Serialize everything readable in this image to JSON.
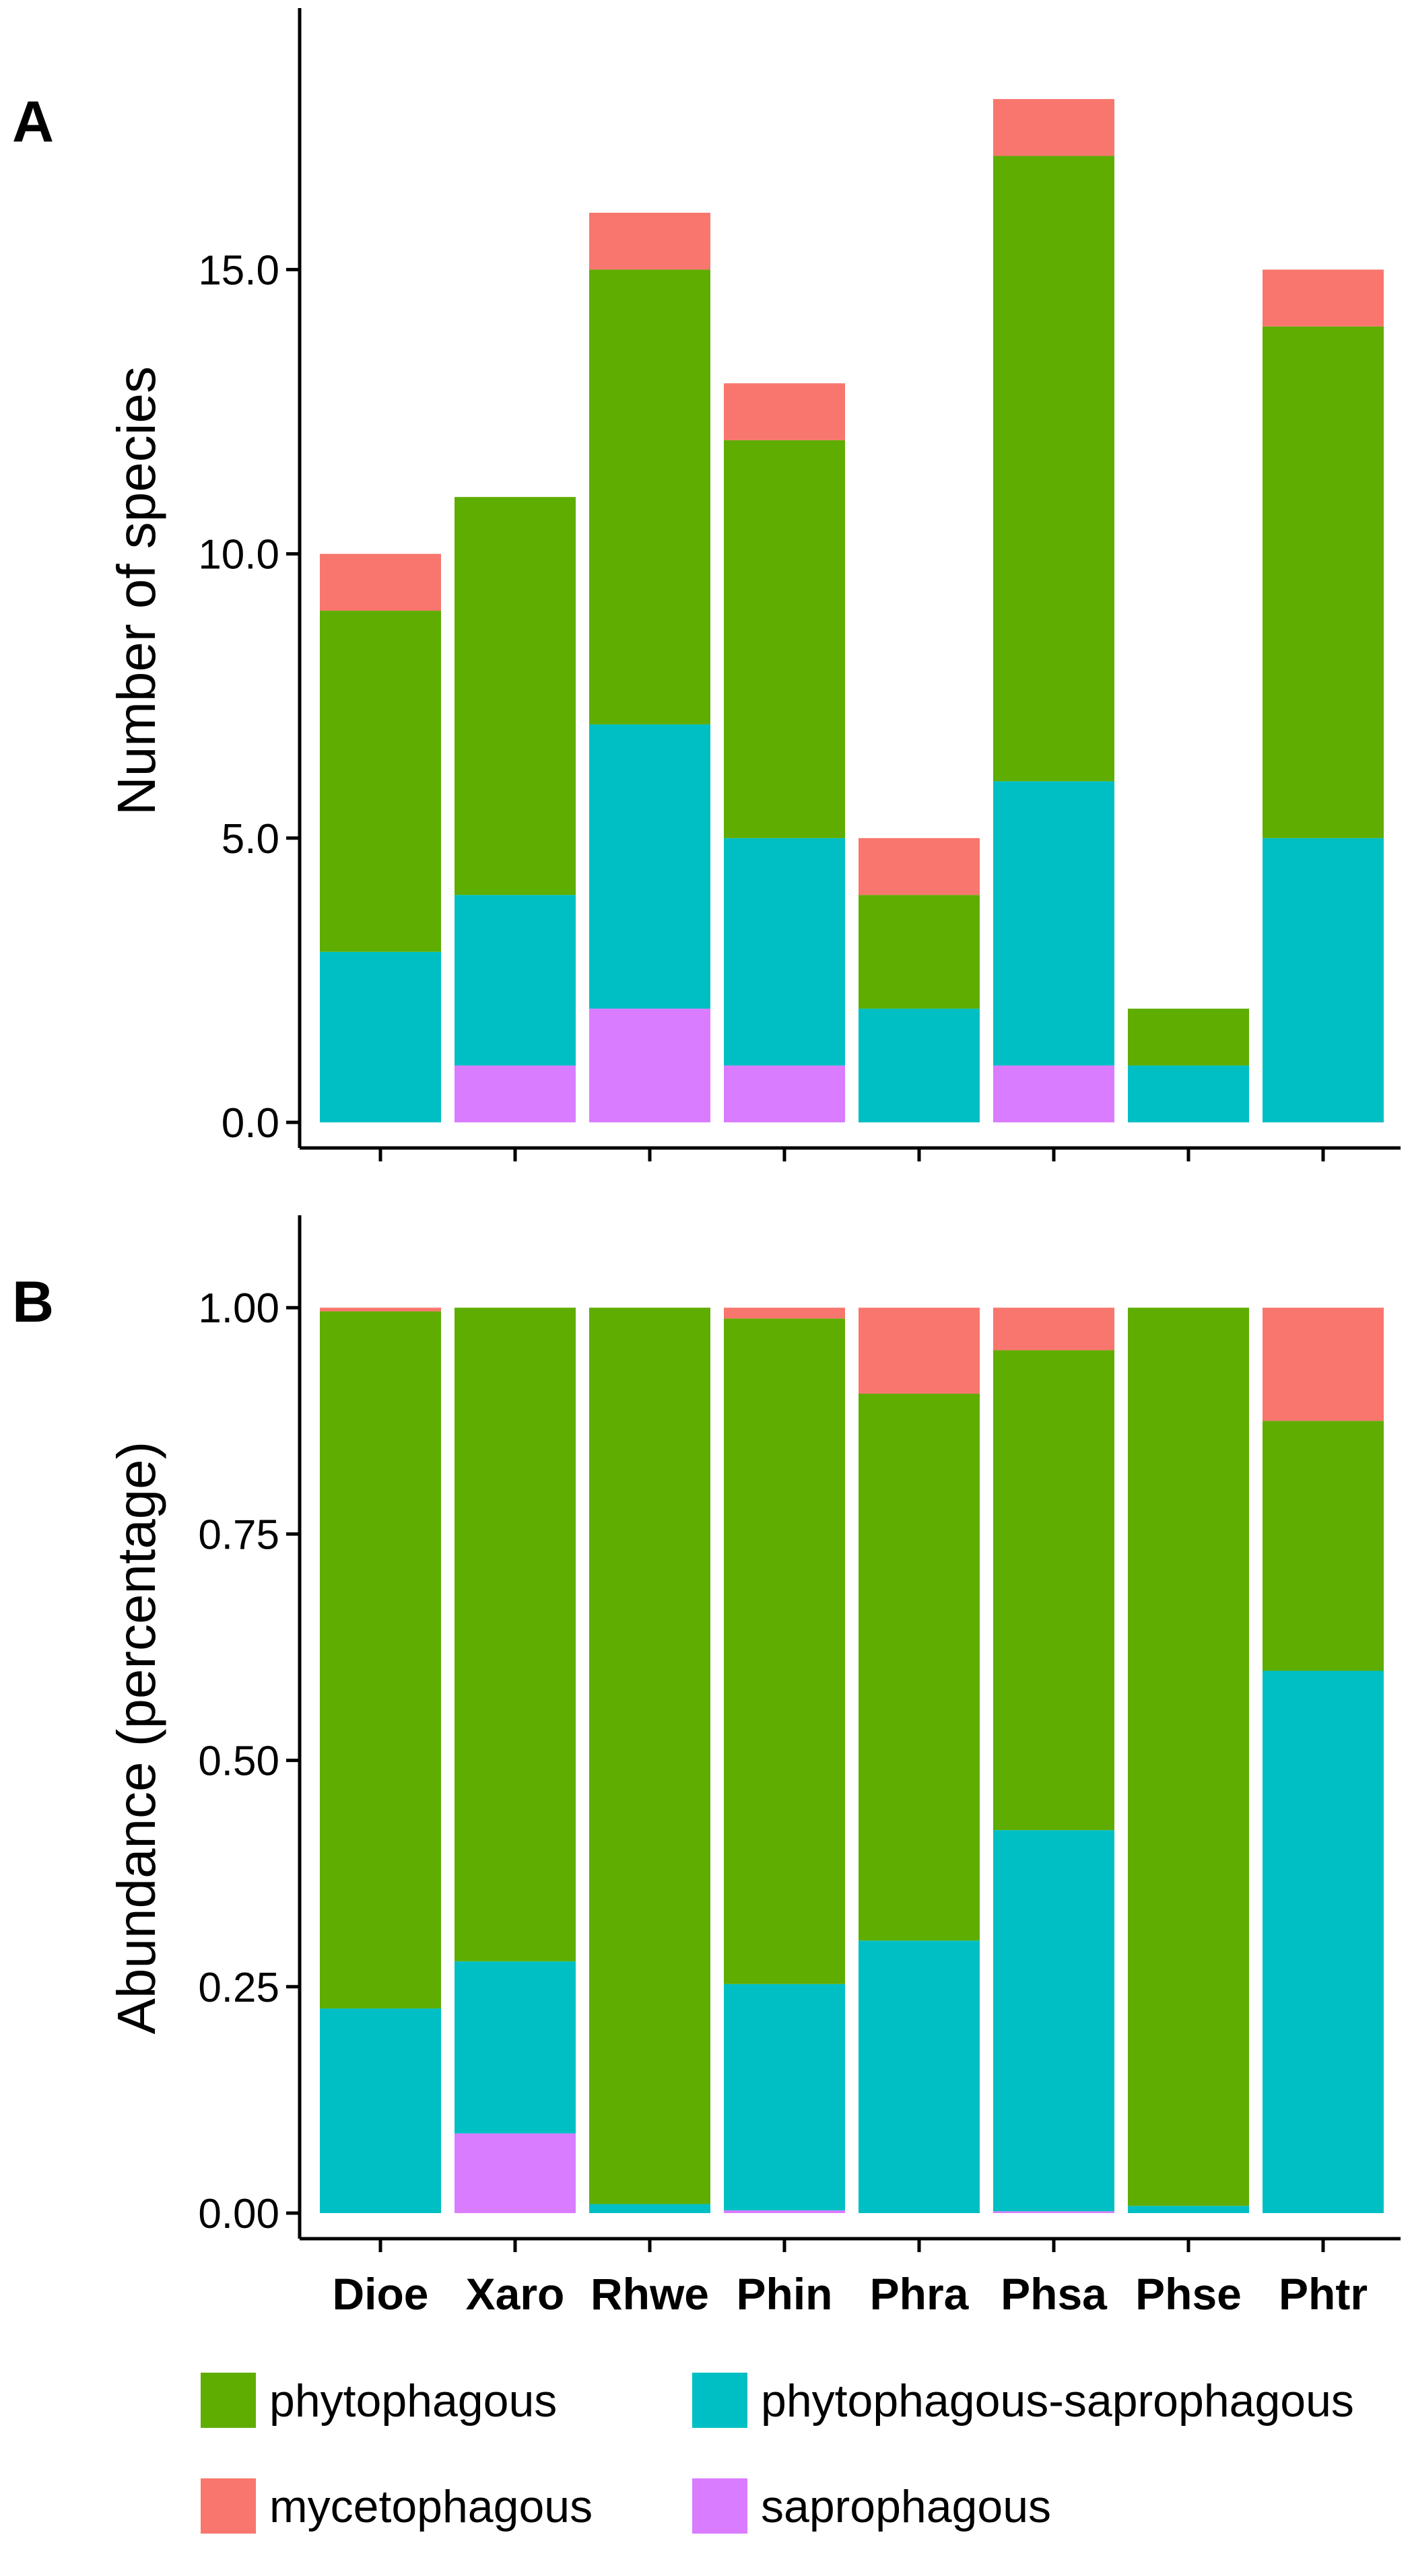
{
  "chart_data": {
    "type": "bar",
    "stacked": true,
    "categories": [
      "Dioe",
      "Xaro",
      "Rhwe",
      "Phin",
      "Phra",
      "Phsa",
      "Phse",
      "Phtr"
    ],
    "legend": {
      "placement": "bottom",
      "items": [
        {
          "name": "phytophagous",
          "color": "#5EAD00"
        },
        {
          "name": "phytophagous-saprophagous",
          "color": "#00BFC4"
        },
        {
          "name": "mycetophagous",
          "color": "#F8766D"
        },
        {
          "name": "saprophagous",
          "color": "#DA7CFF"
        }
      ]
    },
    "stack_order_bottom_to_top": [
      "saprophagous",
      "phytophagous-saprophagous",
      "phytophagous",
      "mycetophagous"
    ],
    "panels": [
      {
        "panel_label": "A",
        "ylabel": "Number of species",
        "ylim": [
          0,
          18.7
        ],
        "yticks": [
          0,
          5,
          10,
          15
        ],
        "ytick_labels": [
          "0.0",
          "5.0",
          "10.0",
          "15.0"
        ],
        "series": [
          {
            "name": "saprophagous",
            "color": "#DA7CFF",
            "values": [
              0,
              1,
              2,
              1,
              0,
              1,
              0,
              0
            ]
          },
          {
            "name": "phytophagous-saprophagous",
            "color": "#00BFC4",
            "values": [
              3,
              3,
              5,
              4,
              2,
              5,
              1,
              5
            ]
          },
          {
            "name": "phytophagous",
            "color": "#5EAD00",
            "values": [
              6,
              7,
              8,
              7,
              2,
              11,
              1,
              9
            ]
          },
          {
            "name": "mycetophagous",
            "color": "#F8766D",
            "values": [
              1,
              0,
              1,
              1,
              1,
              1,
              0,
              1
            ]
          }
        ]
      },
      {
        "panel_label": "B",
        "ylabel": "Abundance (percentage)",
        "ylim": [
          0,
          1.05
        ],
        "yticks": [
          0,
          0.25,
          0.5,
          0.75,
          1.0
        ],
        "ytick_labels": [
          "0.00",
          "0.25",
          "0.50",
          "0.75",
          "1.00"
        ],
        "series": [
          {
            "name": "saprophagous",
            "color": "#DA7CFF",
            "values": [
              0,
              0.088,
              0,
              0.003,
              0,
              0.002,
              0,
              0
            ]
          },
          {
            "name": "phytophagous-saprophagous",
            "color": "#00BFC4",
            "values": [
              0.226,
              0.19,
              0.01,
              0.25,
              0.301,
              0.421,
              0.008,
              0.599
            ]
          },
          {
            "name": "phytophagous",
            "color": "#5EAD00",
            "values": [
              0.77,
              0.722,
              0.99,
              0.735,
              0.604,
              0.53,
              0.992,
              0.276
            ]
          },
          {
            "name": "mycetophagous",
            "color": "#F8766D",
            "values": [
              0.004,
              0,
              0,
              0.012,
              0.095,
              0.047,
              0,
              0.125
            ]
          }
        ]
      }
    ]
  }
}
